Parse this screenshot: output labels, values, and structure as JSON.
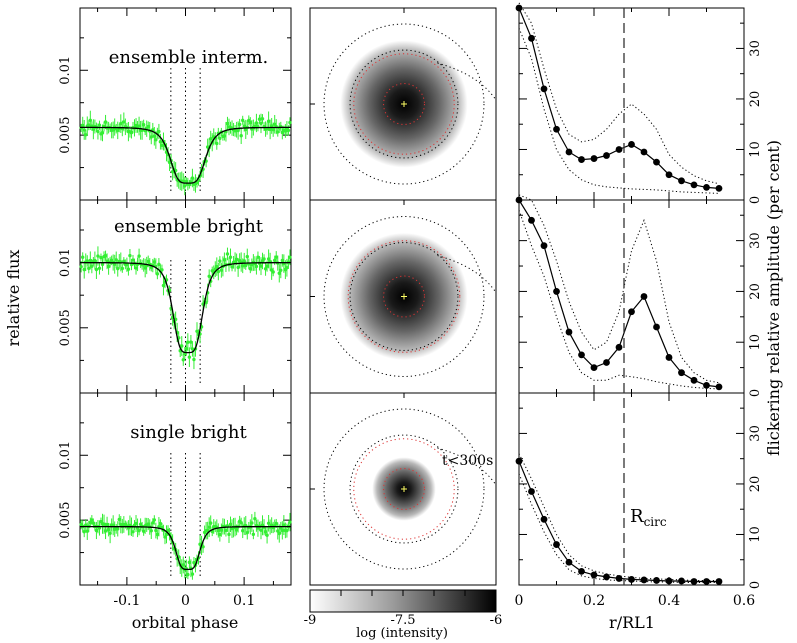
{
  "labels": {
    "left_ylabel": "relative flux",
    "left_xlabel": "orbital phase",
    "mid_xlabel": "log (intensity)",
    "right_ylabel": "flickering relative amplitude (per cent)",
    "right_xlabel": "r/RL1",
    "rcirc_main": "R",
    "rcirc_sub": "circ",
    "time_note": "t<300s"
  },
  "rows": [
    {
      "title": "ensemble interm."
    },
    {
      "title": "ensemble bright"
    },
    {
      "title": "single bright"
    }
  ],
  "colors": {
    "data_points": "#33ee33",
    "model_line": "#000000",
    "circle_red": "#dd3333"
  },
  "chart_data": [
    {
      "type": "scatter",
      "title": "eclipse light curves",
      "xlabel": "orbital phase",
      "ylabel": "relative flux",
      "xlim": [
        -0.18,
        0.18
      ],
      "x_ticks": [
        "-0.1",
        "0",
        "0.1"
      ],
      "y_ticks": [
        "0.005",
        "0.01"
      ],
      "phase_markers": [
        -0.025,
        0,
        0.025
      ],
      "panels": [
        {
          "name": "ensemble interm.",
          "ylim": [
            0,
            0.0148
          ],
          "out_of_eclipse": 0.0056,
          "minimum": 0.0013,
          "model_width": 0.032
        },
        {
          "name": "ensemble bright",
          "ylim": [
            0,
            0.0148
          ],
          "out_of_eclipse": 0.01,
          "minimum": 0.0031,
          "model_width": 0.027
        },
        {
          "name": "single bright",
          "ylim": [
            0,
            0.0148
          ],
          "out_of_eclipse": 0.0045,
          "minimum": 0.0012,
          "model_width": 0.022
        }
      ]
    },
    {
      "type": "heatmap",
      "title": "eclipse maps",
      "colorbar_ticks": [
        "-9",
        "-7.5",
        "-6"
      ],
      "colorbar_range": [
        -9,
        -6
      ],
      "panels": [
        {
          "spot_radius": 0.36,
          "ring": 0.27
        },
        {
          "spot_radius": 0.36,
          "ring": 0.3
        },
        {
          "spot_radius": 0.18,
          "ring": 0.27
        }
      ]
    },
    {
      "type": "line",
      "title": "flickering radial distribution",
      "xlabel": "r/RL1",
      "ylabel": "flickering relative amplitude (per cent)",
      "xlim": [
        0,
        0.6
      ],
      "ylim": [
        0,
        38
      ],
      "x_ticks": [
        "0",
        "0.2",
        "0.4",
        "0.6"
      ],
      "y_ticks": [
        "0",
        "10",
        "20",
        "30"
      ],
      "r_circ": 0.28,
      "x": [
        0.0,
        0.0333,
        0.0667,
        0.1,
        0.1333,
        0.1667,
        0.2,
        0.2333,
        0.2667,
        0.3,
        0.3333,
        0.3667,
        0.4,
        0.4333,
        0.4667,
        0.5,
        0.5333
      ],
      "series": [
        {
          "name": "ensemble interm.",
          "values": [
            38,
            32,
            22,
            14,
            9.5,
            8,
            8.2,
            8.8,
            10,
            11,
            9.5,
            7.5,
            5,
            3.8,
            3,
            2.5,
            2.3
          ],
          "upper": [
            40,
            35,
            26,
            18,
            13,
            11.5,
            12,
            14,
            17,
            19,
            17,
            14,
            9,
            6.5,
            4.8,
            3.8,
            3.2
          ],
          "lower": [
            34,
            28,
            18,
            10,
            6,
            4,
            3,
            2.6,
            2.4,
            2.2,
            2.1,
            2,
            1.8,
            1.6,
            1.5,
            1.4,
            1.3
          ]
        },
        {
          "name": "ensemble bright",
          "values": [
            38,
            34,
            29,
            20,
            12,
            7.5,
            5,
            6,
            9,
            16,
            19,
            13,
            7,
            4,
            2.5,
            1.5,
            1.2
          ],
          "upper": [
            40,
            38,
            33,
            26,
            18,
            12,
            8.5,
            10,
            16,
            28,
            34,
            26,
            14,
            7,
            4,
            2.5,
            2
          ],
          "lower": [
            36,
            29,
            23,
            15,
            8,
            4,
            2.5,
            2.5,
            3.5,
            3.2,
            2.8,
            2.2,
            1.8,
            1.4,
            1.1,
            0.9,
            0.8
          ]
        },
        {
          "name": "single bright",
          "values": [
            24.5,
            18.5,
            13,
            8,
            4.5,
            2.7,
            2,
            1.6,
            1.3,
            1.1,
            1,
            0.9,
            0.8,
            0.8,
            0.7,
            0.7,
            0.7
          ],
          "upper": [
            26,
            21,
            15.5,
            10,
            6,
            3.8,
            2.8,
            2.2,
            1.8,
            1.5,
            1.3,
            1.2,
            1.1,
            1,
            0.9,
            0.9,
            0.9
          ],
          "lower": [
            22,
            16,
            10.5,
            6,
            3,
            1.8,
            1.3,
            1,
            0.9,
            0.8,
            0.7,
            0.6,
            0.6,
            0.5,
            0.5,
            0.5,
            0.5
          ]
        }
      ]
    }
  ]
}
